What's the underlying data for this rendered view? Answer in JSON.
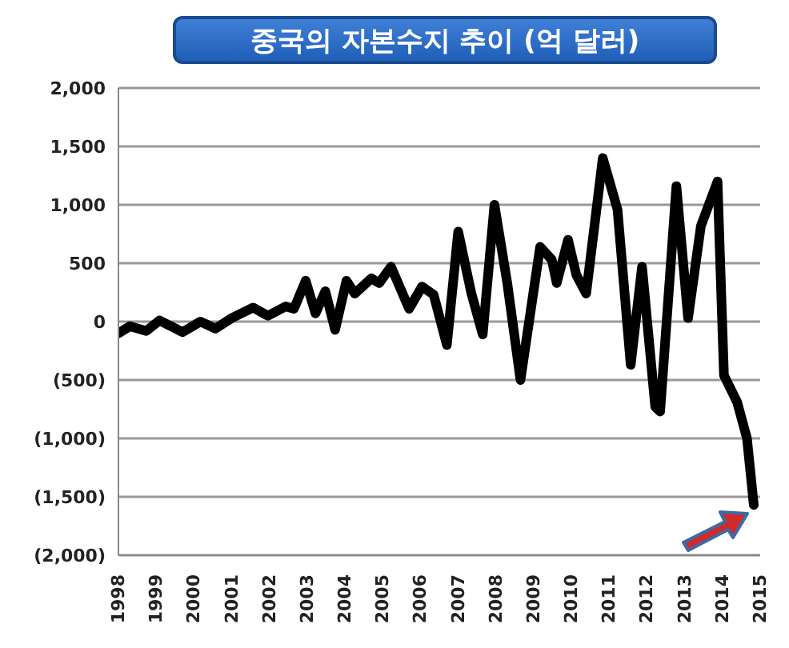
{
  "chart_data": {
    "type": "line",
    "title": "중국의 자본수지 추이 (억 달러)",
    "x": [
      1998.0,
      1998.3,
      1998.74,
      1999.09,
      1999.7,
      2000.17,
      2000.57,
      2001.0,
      2001.57,
      2001.96,
      2002.43,
      2002.65,
      2002.96,
      2003.22,
      2003.48,
      2003.74,
      2004.04,
      2004.26,
      2004.7,
      2004.91,
      2005.22,
      2005.7,
      2006.04,
      2006.35,
      2006.7,
      2007.0,
      2007.35,
      2007.65,
      2007.96,
      2008.3,
      2008.65,
      2009.17,
      2009.48,
      2009.61,
      2009.91,
      2010.13,
      2010.39,
      2010.83,
      2011.22,
      2011.57,
      2011.87,
      2012.22,
      2012.35,
      2012.78,
      2013.09,
      2013.43,
      2013.87,
      2014.04,
      2014.39,
      2014.65,
      2014.83
    ],
    "series": [
      {
        "color": "#000000",
        "values": [
          -100,
          -40,
          -80,
          10,
          -90,
          0,
          -60,
          30,
          120,
          50,
          130,
          110,
          350,
          70,
          260,
          -70,
          350,
          240,
          370,
          330,
          470,
          110,
          300,
          230,
          -200,
          770,
          240,
          -110,
          1000,
          330,
          -500,
          640,
          530,
          330,
          700,
          400,
          240,
          1400,
          960,
          -370,
          470,
          -730,
          -770,
          1160,
          30,
          820,
          1200,
          -460,
          -690,
          -1000,
          -1570
        ]
      }
    ],
    "xlim": [
      1998,
      2015
    ],
    "xticks": [
      1998,
      1999,
      2000,
      2001,
      2002,
      2003,
      2004,
      2005,
      2006,
      2007,
      2008,
      2009,
      2010,
      2011,
      2012,
      2013,
      2014,
      2015
    ],
    "ylim": [
      -2000,
      2000
    ],
    "yticks": [
      {
        "value": -2000,
        "label": "(2,000)"
      },
      {
        "value": -1500,
        "label": "(1,500)"
      },
      {
        "value": -1000,
        "label": "(1,000)"
      },
      {
        "value": -500,
        "label": "(500)"
      },
      0,
      {
        "value": 500,
        "label": "500"
      },
      {
        "value": 1000,
        "label": "1,000"
      },
      {
        "value": 1500,
        "label": "1,500"
      },
      {
        "value": 2000,
        "label": "2,000"
      }
    ],
    "grid": "y",
    "marker": "none",
    "line_style": "solid"
  }
}
